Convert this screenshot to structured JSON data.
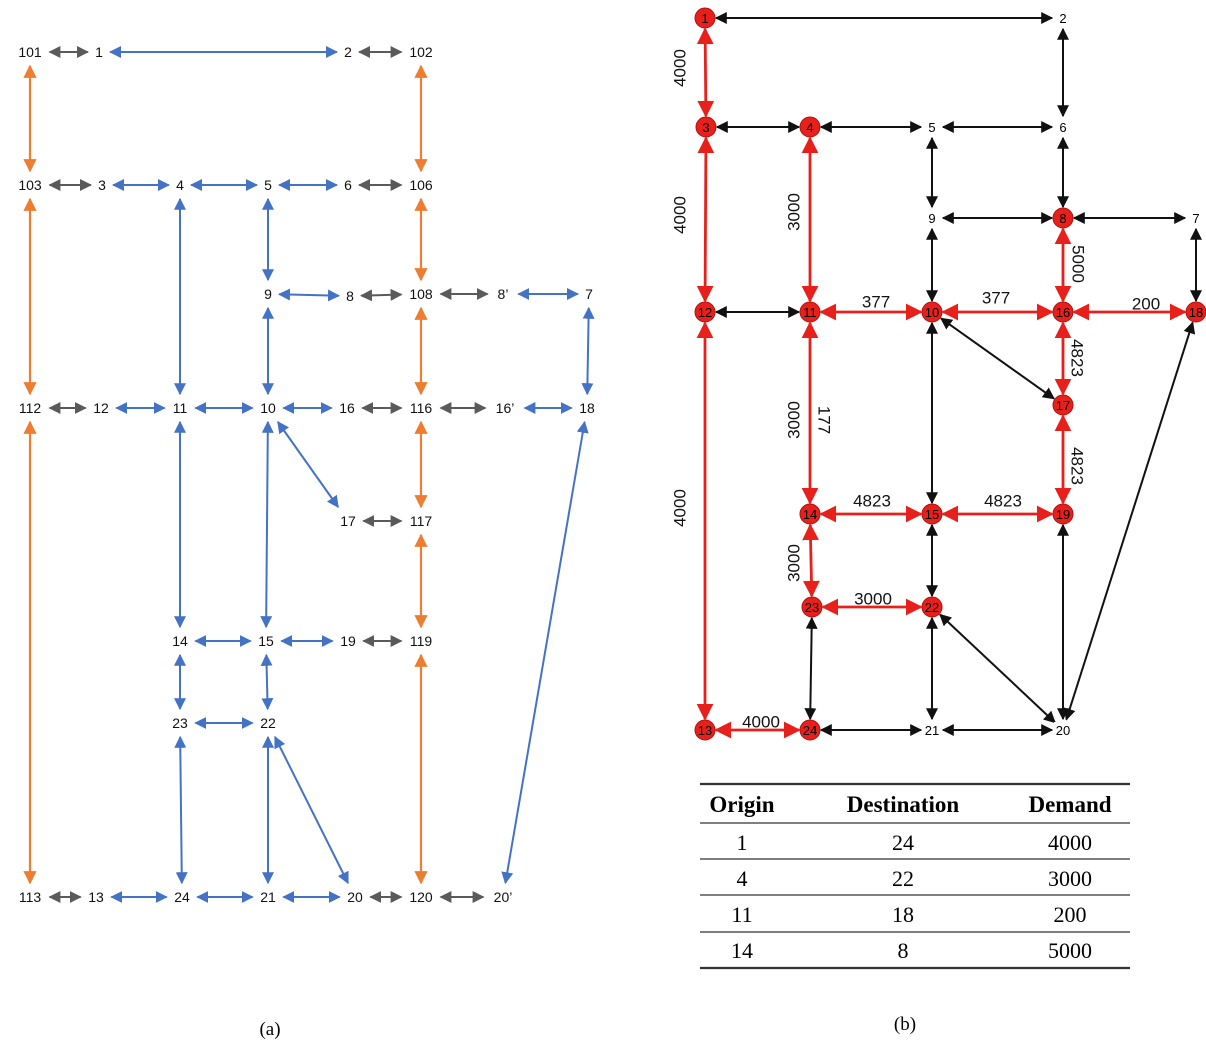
{
  "panel_a": {
    "caption": "(a)",
    "colors": {
      "link": "#4472C4",
      "connector": "#5A5A5A",
      "boundary": "#ED7D31"
    },
    "nodes": [
      {
        "id": "101",
        "label": "101"
      },
      {
        "id": "1",
        "label": "1"
      },
      {
        "id": "2",
        "label": "2"
      },
      {
        "id": "102",
        "label": "102"
      },
      {
        "id": "103",
        "label": "103"
      },
      {
        "id": "3",
        "label": "3"
      },
      {
        "id": "4",
        "label": "4"
      },
      {
        "id": "5",
        "label": "5"
      },
      {
        "id": "6",
        "label": "6"
      },
      {
        "id": "106",
        "label": "106"
      },
      {
        "id": "9",
        "label": "9"
      },
      {
        "id": "8",
        "label": "8"
      },
      {
        "id": "108",
        "label": "108"
      },
      {
        "id": "8p",
        "label": "8’"
      },
      {
        "id": "7",
        "label": "7"
      },
      {
        "id": "112",
        "label": "112"
      },
      {
        "id": "12",
        "label": "12"
      },
      {
        "id": "11",
        "label": "11"
      },
      {
        "id": "10",
        "label": "10"
      },
      {
        "id": "16",
        "label": "16"
      },
      {
        "id": "116",
        "label": "116"
      },
      {
        "id": "16p",
        "label": "16’"
      },
      {
        "id": "18",
        "label": "18"
      },
      {
        "id": "17",
        "label": "17"
      },
      {
        "id": "117",
        "label": "117"
      },
      {
        "id": "14",
        "label": "14"
      },
      {
        "id": "15",
        "label": "15"
      },
      {
        "id": "19",
        "label": "19"
      },
      {
        "id": "119",
        "label": "119"
      },
      {
        "id": "23",
        "label": "23"
      },
      {
        "id": "22",
        "label": "22"
      },
      {
        "id": "113",
        "label": "113"
      },
      {
        "id": "13",
        "label": "13"
      },
      {
        "id": "24",
        "label": "24"
      },
      {
        "id": "21",
        "label": "21"
      },
      {
        "id": "20",
        "label": "20"
      },
      {
        "id": "120",
        "label": "120"
      },
      {
        "id": "20p",
        "label": "20’"
      }
    ],
    "edges": [
      {
        "from": "101",
        "to": "1",
        "kind": "connector"
      },
      {
        "from": "1",
        "to": "2",
        "kind": "link"
      },
      {
        "from": "2",
        "to": "102",
        "kind": "connector"
      },
      {
        "from": "101",
        "to": "103",
        "kind": "boundary"
      },
      {
        "from": "102",
        "to": "106",
        "kind": "boundary"
      },
      {
        "from": "103",
        "to": "3",
        "kind": "connector"
      },
      {
        "from": "3",
        "to": "4",
        "kind": "link"
      },
      {
        "from": "4",
        "to": "5",
        "kind": "link"
      },
      {
        "from": "5",
        "to": "6",
        "kind": "link"
      },
      {
        "from": "6",
        "to": "106",
        "kind": "connector"
      },
      {
        "from": "103",
        "to": "112",
        "kind": "boundary"
      },
      {
        "from": "106",
        "to": "108",
        "kind": "boundary"
      },
      {
        "from": "4",
        "to": "11",
        "kind": "link"
      },
      {
        "from": "5",
        "to": "9",
        "kind": "link"
      },
      {
        "from": "9",
        "to": "8",
        "kind": "link"
      },
      {
        "from": "8",
        "to": "108",
        "kind": "connector"
      },
      {
        "from": "108",
        "to": "8p",
        "kind": "connector"
      },
      {
        "from": "8p",
        "to": "7",
        "kind": "link"
      },
      {
        "from": "7",
        "to": "18",
        "kind": "link"
      },
      {
        "from": "9",
        "to": "10",
        "kind": "link"
      },
      {
        "from": "108",
        "to": "116",
        "kind": "boundary"
      },
      {
        "from": "112",
        "to": "12",
        "kind": "connector"
      },
      {
        "from": "12",
        "to": "11",
        "kind": "link"
      },
      {
        "from": "11",
        "to": "10",
        "kind": "link"
      },
      {
        "from": "10",
        "to": "16",
        "kind": "link"
      },
      {
        "from": "16",
        "to": "116",
        "kind": "connector"
      },
      {
        "from": "116",
        "to": "16p",
        "kind": "connector"
      },
      {
        "from": "16p",
        "to": "18",
        "kind": "link"
      },
      {
        "from": "10",
        "to": "17",
        "kind": "link"
      },
      {
        "from": "17",
        "to": "117",
        "kind": "connector"
      },
      {
        "from": "116",
        "to": "117",
        "kind": "boundary"
      },
      {
        "from": "117",
        "to": "119",
        "kind": "boundary"
      },
      {
        "from": "11",
        "to": "14",
        "kind": "link"
      },
      {
        "from": "10",
        "to": "15",
        "kind": "link"
      },
      {
        "from": "14",
        "to": "15",
        "kind": "link"
      },
      {
        "from": "15",
        "to": "19",
        "kind": "link"
      },
      {
        "from": "19",
        "to": "119",
        "kind": "connector"
      },
      {
        "from": "14",
        "to": "23",
        "kind": "link"
      },
      {
        "from": "15",
        "to": "22",
        "kind": "link"
      },
      {
        "from": "23",
        "to": "22",
        "kind": "link"
      },
      {
        "from": "112",
        "to": "113",
        "kind": "boundary"
      },
      {
        "from": "119",
        "to": "120",
        "kind": "boundary"
      },
      {
        "from": "23",
        "to": "24",
        "kind": "link"
      },
      {
        "from": "22",
        "to": "21",
        "kind": "link"
      },
      {
        "from": "22",
        "to": "20",
        "kind": "link"
      },
      {
        "from": "18",
        "to": "20p",
        "kind": "link"
      },
      {
        "from": "113",
        "to": "13",
        "kind": "connector"
      },
      {
        "from": "13",
        "to": "24",
        "kind": "link"
      },
      {
        "from": "24",
        "to": "21",
        "kind": "link"
      },
      {
        "from": "21",
        "to": "20",
        "kind": "link"
      },
      {
        "from": "20",
        "to": "120",
        "kind": "connector"
      },
      {
        "from": "120",
        "to": "20p",
        "kind": "connector"
      }
    ]
  },
  "panel_b": {
    "caption": "(b)",
    "colors": {
      "path": "#E8201C",
      "edge": "#111111",
      "node_fill": "#E8201C"
    },
    "nodes": [
      {
        "id": "1",
        "label": "1",
        "highlighted": true
      },
      {
        "id": "2",
        "label": "2",
        "highlighted": false
      },
      {
        "id": "3",
        "label": "3",
        "highlighted": true
      },
      {
        "id": "4",
        "label": "4",
        "highlighted": true
      },
      {
        "id": "5",
        "label": "5",
        "highlighted": false
      },
      {
        "id": "6",
        "label": "6",
        "highlighted": false
      },
      {
        "id": "9",
        "label": "9",
        "highlighted": false
      },
      {
        "id": "8",
        "label": "8",
        "highlighted": true
      },
      {
        "id": "7",
        "label": "7",
        "highlighted": false
      },
      {
        "id": "12",
        "label": "12",
        "highlighted": true
      },
      {
        "id": "11",
        "label": "11",
        "highlighted": true
      },
      {
        "id": "10",
        "label": "10",
        "highlighted": true
      },
      {
        "id": "16",
        "label": "16",
        "highlighted": true
      },
      {
        "id": "18",
        "label": "18",
        "highlighted": true
      },
      {
        "id": "17",
        "label": "17",
        "highlighted": true
      },
      {
        "id": "14",
        "label": "14",
        "highlighted": true
      },
      {
        "id": "15",
        "label": "15",
        "highlighted": true
      },
      {
        "id": "19",
        "label": "19",
        "highlighted": true
      },
      {
        "id": "23",
        "label": "23",
        "highlighted": true
      },
      {
        "id": "22",
        "label": "22",
        "highlighted": true
      },
      {
        "id": "13",
        "label": "13",
        "highlighted": true
      },
      {
        "id": "24",
        "label": "24",
        "highlighted": true
      },
      {
        "id": "21",
        "label": "21",
        "highlighted": false
      },
      {
        "id": "20",
        "label": "20",
        "highlighted": false
      }
    ],
    "edges": [
      {
        "from": "1",
        "to": "2",
        "red": false
      },
      {
        "from": "1",
        "to": "3",
        "red": true
      },
      {
        "from": "2",
        "to": "6",
        "red": false
      },
      {
        "from": "3",
        "to": "4",
        "red": false
      },
      {
        "from": "4",
        "to": "5",
        "red": false
      },
      {
        "from": "5",
        "to": "6",
        "red": false
      },
      {
        "from": "5",
        "to": "9",
        "red": false
      },
      {
        "from": "6",
        "to": "8",
        "red": false
      },
      {
        "from": "9",
        "to": "8",
        "red": false
      },
      {
        "from": "8",
        "to": "7",
        "red": false
      },
      {
        "from": "7",
        "to": "18",
        "red": false
      },
      {
        "from": "3",
        "to": "12",
        "red": true
      },
      {
        "from": "4",
        "to": "11",
        "red": true
      },
      {
        "from": "9",
        "to": "10",
        "red": false
      },
      {
        "from": "8",
        "to": "16",
        "red": true
      },
      {
        "from": "12",
        "to": "11",
        "red": false
      },
      {
        "from": "11",
        "to": "10",
        "red": true
      },
      {
        "from": "10",
        "to": "16",
        "red": true
      },
      {
        "from": "16",
        "to": "18",
        "red": true
      },
      {
        "from": "10",
        "to": "17",
        "red": false
      },
      {
        "from": "16",
        "to": "17",
        "red": true
      },
      {
        "from": "12",
        "to": "13",
        "red": true
      },
      {
        "from": "11",
        "to": "14",
        "red": true
      },
      {
        "from": "10",
        "to": "15",
        "red": false
      },
      {
        "from": "17",
        "to": "19",
        "red": true
      },
      {
        "from": "14",
        "to": "15",
        "red": true
      },
      {
        "from": "15",
        "to": "19",
        "red": true
      },
      {
        "from": "14",
        "to": "23",
        "red": true
      },
      {
        "from": "15",
        "to": "22",
        "red": false
      },
      {
        "from": "23",
        "to": "22",
        "red": true
      },
      {
        "from": "19",
        "to": "20",
        "red": false
      },
      {
        "from": "23",
        "to": "24",
        "red": false
      },
      {
        "from": "22",
        "to": "21",
        "red": false
      },
      {
        "from": "22",
        "to": "20",
        "red": false
      },
      {
        "from": "20",
        "to": "18",
        "red": false
      },
      {
        "from": "13",
        "to": "24",
        "red": true
      },
      {
        "from": "24",
        "to": "21",
        "red": false
      },
      {
        "from": "21",
        "to": "20",
        "red": false
      }
    ],
    "flow_labels": [
      {
        "edge": "1-3",
        "text": "4000"
      },
      {
        "edge": "3-12",
        "text": "4000"
      },
      {
        "edge": "4-11",
        "text": "3000"
      },
      {
        "edge": "11-10",
        "text": "377"
      },
      {
        "edge": "10-16",
        "text": "377"
      },
      {
        "edge": "8-16",
        "text": "5000"
      },
      {
        "edge": "16-18",
        "text": "200"
      },
      {
        "edge": "16-17",
        "text": "4823"
      },
      {
        "edge": "11-14",
        "text": "3000"
      },
      {
        "edge": "11-14b",
        "text": "177"
      },
      {
        "edge": "17-19",
        "text": "4823"
      },
      {
        "edge": "12-13",
        "text": "4000"
      },
      {
        "edge": "14-15",
        "text": "4823"
      },
      {
        "edge": "15-19",
        "text": "4823"
      },
      {
        "edge": "14-23",
        "text": "3000"
      },
      {
        "edge": "23-22",
        "text": "3000"
      },
      {
        "edge": "13-24",
        "text": "4000"
      }
    ],
    "table": {
      "headers": [
        "Origin",
        "Destination",
        "Demand"
      ],
      "rows": [
        [
          "1",
          "24",
          "4000"
        ],
        [
          "4",
          "22",
          "3000"
        ],
        [
          "11",
          "18",
          "200"
        ],
        [
          "14",
          "8",
          "5000"
        ]
      ]
    }
  }
}
